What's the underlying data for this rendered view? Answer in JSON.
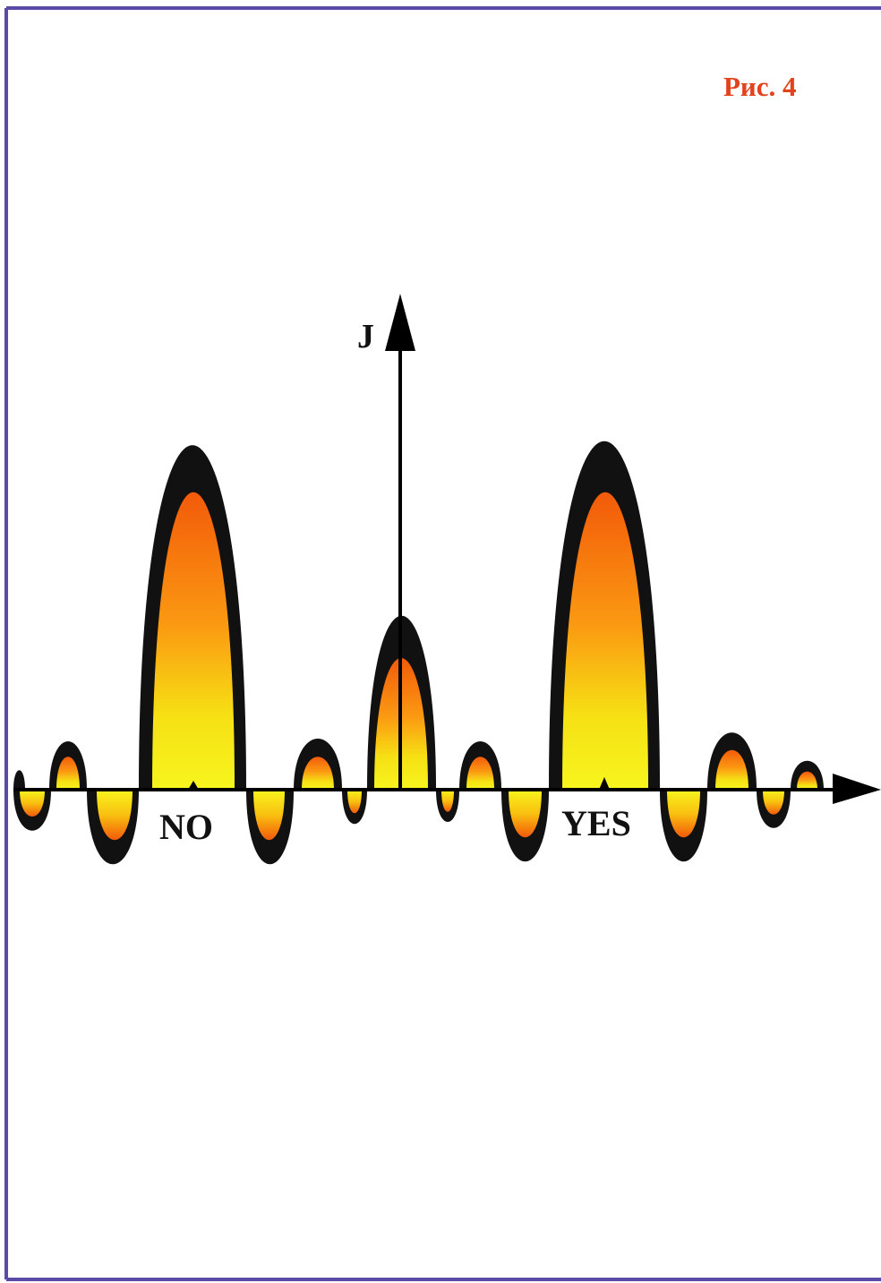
{
  "figure_label": "Рис. 4",
  "axis_label": "J",
  "peaks": {
    "left": "NO",
    "right": "YES"
  }
}
